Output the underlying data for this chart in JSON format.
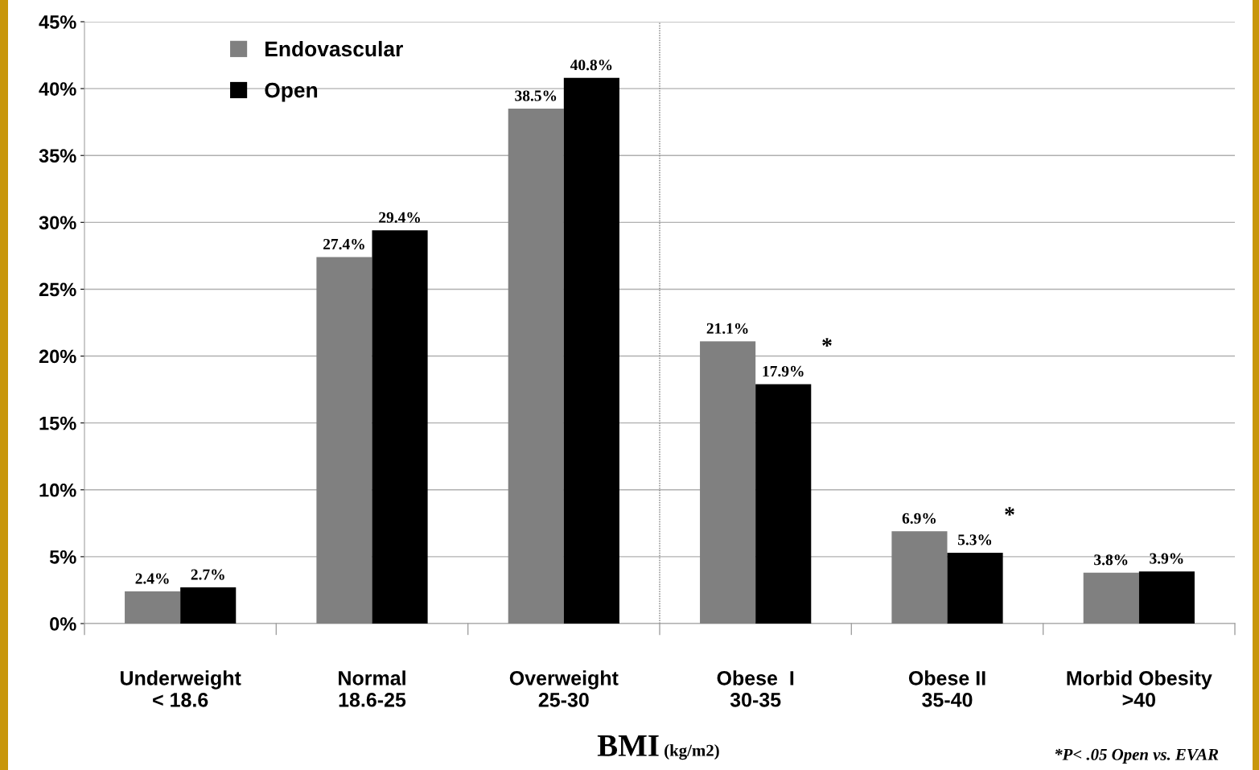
{
  "chart_data": {
    "type": "bar",
    "categories": [
      "Underweight\n< 18.6",
      "Normal\n18.6-25",
      "Overweight\n25-30",
      "Obese  I\n30-35",
      "Obese II\n35-40",
      "Morbid Obesity\n>40"
    ],
    "series": [
      {
        "name": "Endovascular",
        "color": "#808080",
        "values": [
          2.4,
          27.4,
          38.5,
          21.1,
          6.9,
          3.8
        ],
        "value_labels": [
          "2.4%",
          "27.4%",
          "38.5%",
          "21.1%",
          "6.9%",
          "3.8%"
        ]
      },
      {
        "name": "Open",
        "color": "#000000",
        "values": [
          2.7,
          29.4,
          40.8,
          17.9,
          5.3,
          3.9
        ],
        "value_labels": [
          "2.7%",
          "29.4%",
          "40.8%",
          "17.9%",
          "5.3%",
          "3.9%"
        ]
      }
    ],
    "xlabel": "BMI (kg/m2)",
    "ylim": [
      0,
      45
    ],
    "yticks": [
      {
        "value": 0,
        "label": "0%"
      },
      {
        "value": 5,
        "label": "5%"
      },
      {
        "value": 10,
        "label": "10%"
      },
      {
        "value": 15,
        "label": "15%"
      },
      {
        "value": 20,
        "label": "20%"
      },
      {
        "value": 25,
        "label": "25%"
      },
      {
        "value": 30,
        "label": "30%"
      },
      {
        "value": 35,
        "label": "35%"
      },
      {
        "value": 40,
        "label": "40%"
      },
      {
        "value": 45,
        "label": "45%"
      }
    ],
    "grid": "y",
    "legend": "top left",
    "annotations": [
      "*",
      "*",
      "*P< .05 Open vs. EVAR"
    ]
  }
}
